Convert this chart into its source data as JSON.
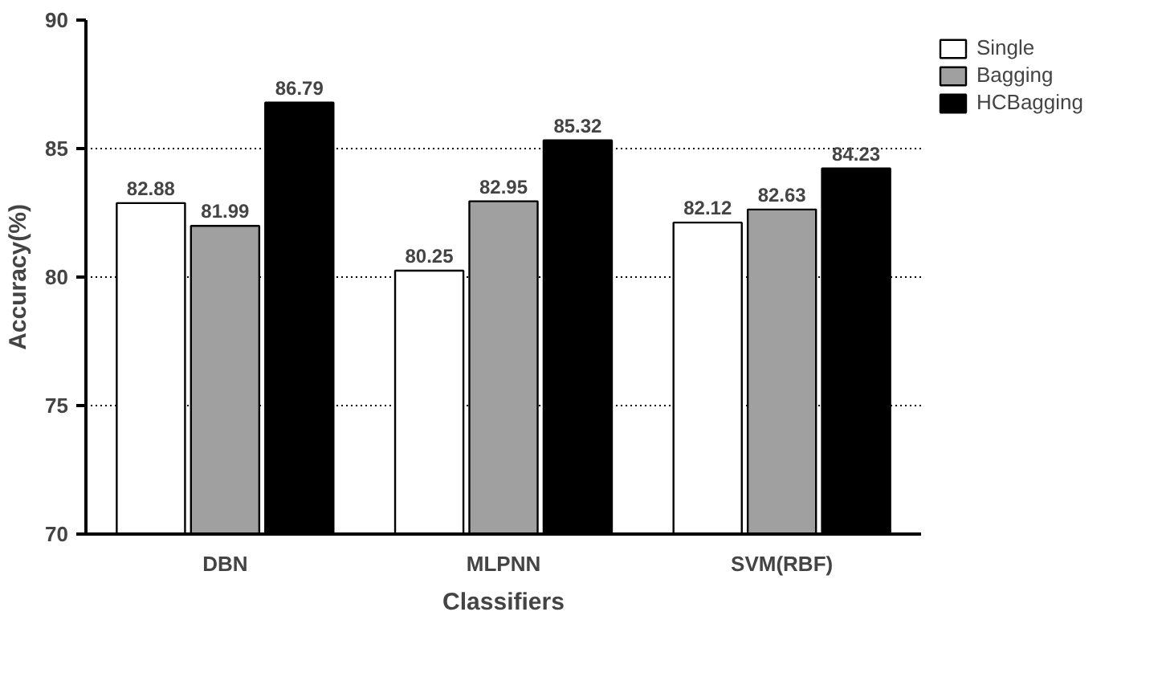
{
  "chart_data": {
    "type": "bar",
    "xlabel": "Classifiers",
    "ylabel": "Accuracy(%)",
    "categories": [
      "DBN",
      "MLPNN",
      "SVM(RBF)"
    ],
    "series": [
      {
        "name": "Single",
        "color": "#ffffff",
        "values": [
          82.88,
          80.25,
          82.12
        ]
      },
      {
        "name": "Bagging",
        "color": "#a0a0a0",
        "values": [
          81.99,
          82.95,
          82.63
        ]
      },
      {
        "name": "HCBagging",
        "color": "#000000",
        "values": [
          86.79,
          85.32,
          84.23
        ]
      }
    ],
    "ylim": [
      70,
      90
    ],
    "yticks": [
      70,
      75,
      80,
      85,
      90
    ],
    "grid": "y",
    "legend": "top right",
    "data_labels": true
  }
}
